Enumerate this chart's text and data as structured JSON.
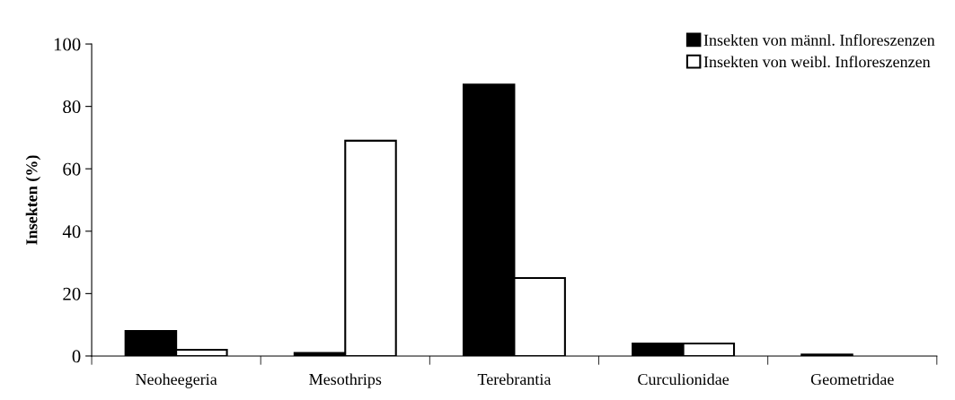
{
  "chart_data": {
    "type": "bar",
    "ylabel": "Insekten (%)",
    "categories": [
      "Neoheegeria",
      "Mesothrips",
      "Terebrantia",
      "Curculionidae",
      "Geometridae"
    ],
    "series": [
      {
        "name": "Insekten von männl. Infloreszenzen",
        "color": "#000000",
        "values": [
          8,
          1,
          87,
          4,
          0.5
        ]
      },
      {
        "name": "Insekten von weibl. Infloreszenzen",
        "color": "#ffffff",
        "values": [
          2,
          69,
          25,
          4,
          null
        ]
      }
    ],
    "ylim": [
      0,
      100
    ],
    "yticks": [
      0,
      20,
      40,
      60,
      80,
      100
    ],
    "grid": false,
    "legend": "top right"
  }
}
